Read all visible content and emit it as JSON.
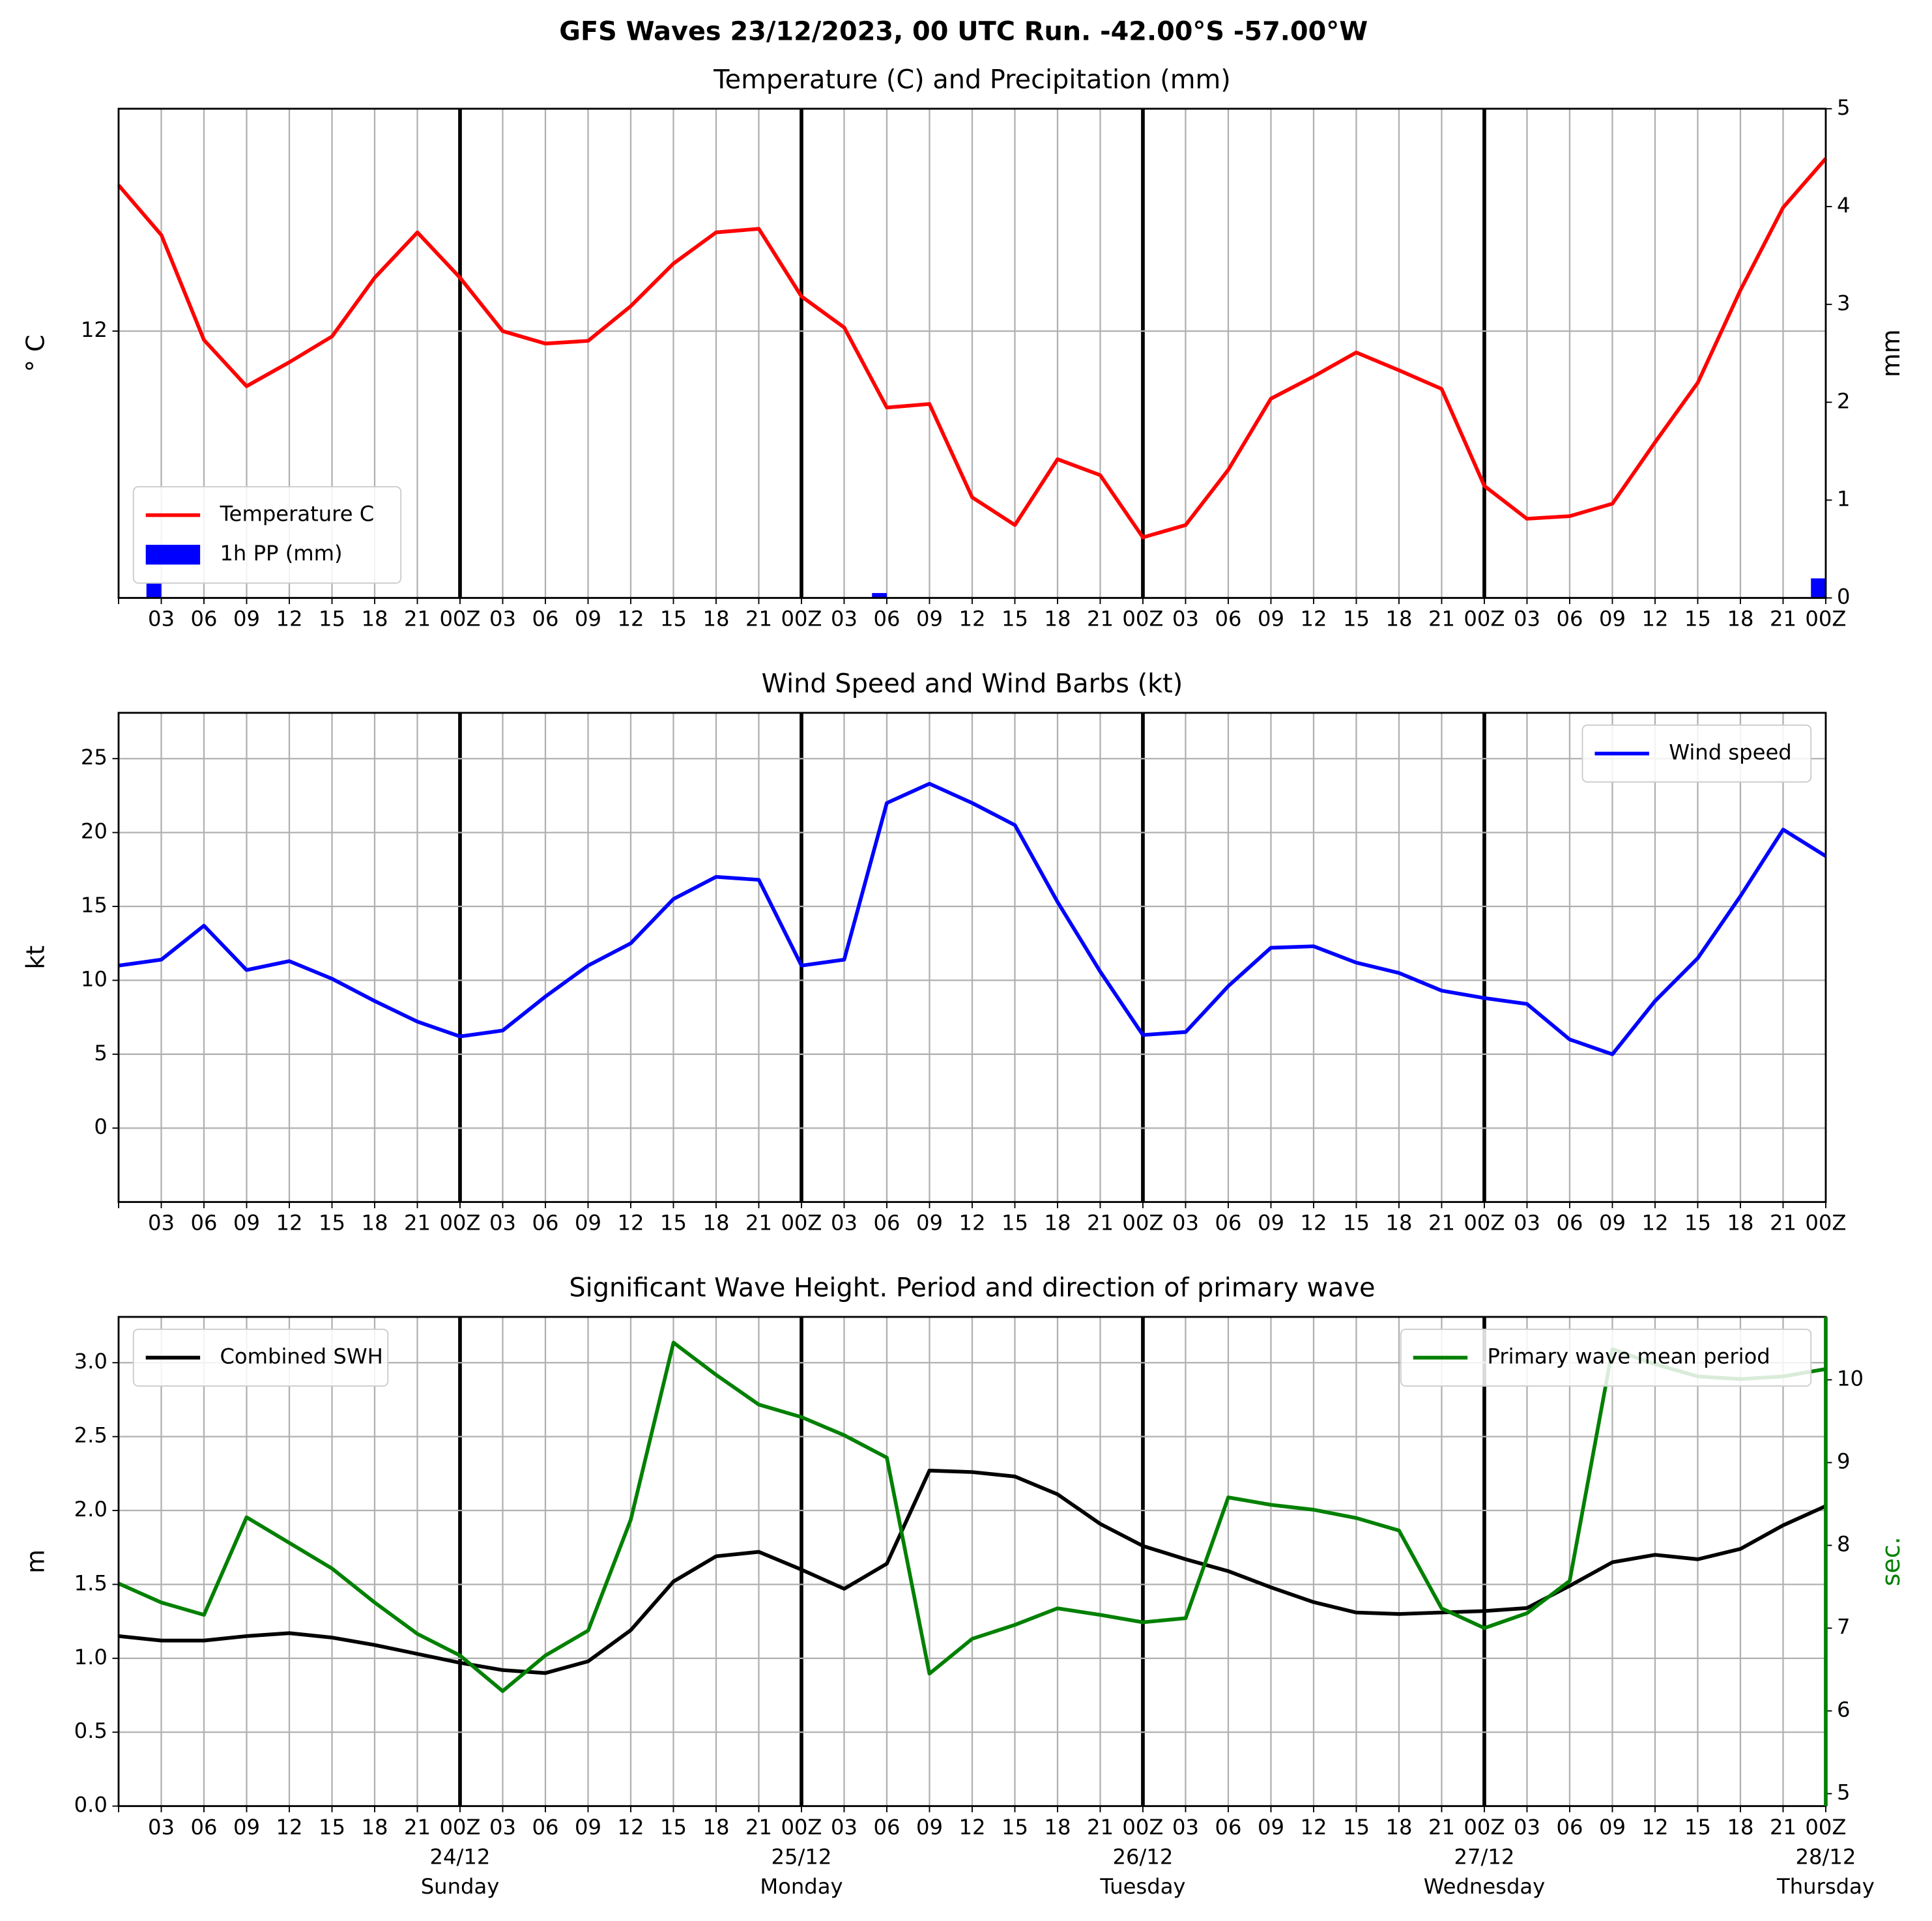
{
  "chart_data": [
    {
      "type": "line",
      "suptitle": "GFS Waves 23/12/2023, 00 UTC Run. -42.00°S -57.00°W",
      "title": "Temperature (C) and Precipitation (mm)",
      "ylabel": "° C",
      "y2label": "mm",
      "categories": [
        null,
        "03",
        "06",
        "09",
        "12",
        "15",
        "18",
        "21",
        "00Z",
        "03",
        "06",
        "09",
        "12",
        "15",
        "18",
        "21",
        "00Z",
        "03",
        "06",
        "09",
        "12",
        "15",
        "18",
        "21",
        "00Z",
        "03",
        "06",
        "09",
        "12",
        "15",
        "18",
        "21",
        "00Z",
        "03",
        "06",
        "09",
        "12",
        "15",
        "18",
        "21",
        "00Z"
      ],
      "ylim": [
        9,
        14.5
      ],
      "yticks": [
        12
      ],
      "y2lim": [
        0,
        5
      ],
      "y2ticks": [
        0,
        1,
        2,
        3,
        4,
        5
      ],
      "grid": true,
      "legend": "lower left",
      "series": [
        {
          "name": "Temperature C",
          "color": "#ff0000",
          "values": [
            13.64,
            13.08,
            11.9,
            11.38,
            11.65,
            11.94,
            12.6,
            13.11,
            12.6,
            12.0,
            11.86,
            11.89,
            12.28,
            12.76,
            13.11,
            13.15,
            12.39,
            12.04,
            11.14,
            11.18,
            10.13,
            9.82,
            10.56,
            10.38,
            9.68,
            9.82,
            10.44,
            11.24,
            11.49,
            11.76,
            11.56,
            11.35,
            10.26,
            9.89,
            9.92,
            10.06,
            10.75,
            11.42,
            12.46,
            13.39,
            13.94
          ]
        },
        {
          "name": "1h PP (mm)",
          "color": "#0000ff",
          "type": "bar",
          "axis": "y2",
          "values": [
            0,
            0.15,
            0,
            0,
            0,
            0,
            0,
            0,
            0,
            0,
            0,
            0,
            0,
            0,
            0,
            0,
            0,
            0,
            0.05,
            0,
            0,
            0,
            0,
            0,
            0,
            0,
            0,
            0,
            0,
            0,
            0,
            0,
            0,
            0,
            0,
            0,
            0,
            0,
            0,
            0,
            0.2
          ]
        }
      ]
    },
    {
      "type": "line",
      "title": "Wind Speed and Wind Barbs (kt)",
      "ylabel": "kt",
      "categories": [
        null,
        "03",
        "06",
        "09",
        "12",
        "15",
        "18",
        "21",
        "00Z",
        "03",
        "06",
        "09",
        "12",
        "15",
        "18",
        "21",
        "00Z",
        "03",
        "06",
        "09",
        "12",
        "15",
        "18",
        "21",
        "00Z",
        "03",
        "06",
        "09",
        "12",
        "15",
        "18",
        "21",
        "00Z",
        "03",
        "06",
        "09",
        "12",
        "15",
        "18",
        "21",
        "00Z"
      ],
      "ylim": [
        -5,
        28.1
      ],
      "yticks": [
        0,
        5,
        10,
        15,
        20,
        25
      ],
      "grid": true,
      "legend": "upper right",
      "series": [
        {
          "name": "Wind speed",
          "color": "#0000ff",
          "values": [
            11.0,
            11.4,
            13.7,
            10.7,
            11.3,
            10.1,
            8.6,
            7.2,
            6.2,
            6.6,
            8.9,
            11.0,
            12.5,
            15.5,
            17.0,
            16.8,
            11.0,
            11.4,
            22.0,
            23.3,
            22.0,
            20.5,
            15.3,
            10.6,
            6.3,
            6.5,
            9.6,
            12.2,
            12.3,
            11.2,
            10.5,
            9.3,
            8.8,
            8.4,
            6.0,
            5.0,
            8.6,
            11.5,
            15.7,
            20.2,
            18.4
          ]
        }
      ]
    },
    {
      "type": "line",
      "title": "Significant Wave Height. Period and direction of primary wave",
      "ylabel": "m",
      "y2label": "sec.",
      "y2color": "#008000",
      "categories": [
        null,
        "03",
        "06",
        "09",
        "12",
        "15",
        "18",
        "21",
        "00Z",
        "03",
        "06",
        "09",
        "12",
        "15",
        "18",
        "21",
        "00Z",
        "03",
        "06",
        "09",
        "12",
        "15",
        "18",
        "21",
        "00Z",
        "03",
        "06",
        "09",
        "12",
        "15",
        "18",
        "21",
        "00Z",
        "03",
        "06",
        "09",
        "12",
        "15",
        "18",
        "21",
        "00Z"
      ],
      "dates": [
        null,
        null,
        null,
        null,
        null,
        null,
        null,
        null,
        "24/12",
        null,
        null,
        null,
        null,
        null,
        null,
        null,
        "25/12",
        null,
        null,
        null,
        null,
        null,
        null,
        null,
        "26/12",
        null,
        null,
        null,
        null,
        null,
        null,
        null,
        "27/12",
        null,
        null,
        null,
        null,
        null,
        null,
        null,
        "28/12"
      ],
      "weekdays": [
        null,
        null,
        null,
        null,
        null,
        null,
        null,
        null,
        "Sunday",
        null,
        null,
        null,
        null,
        null,
        null,
        null,
        "Monday",
        null,
        null,
        null,
        null,
        null,
        null,
        null,
        "Tuesday",
        null,
        null,
        null,
        null,
        null,
        null,
        null,
        "Wednesday",
        null,
        null,
        null,
        null,
        null,
        null,
        null,
        "Thursday"
      ],
      "ylim": [
        0,
        3.31
      ],
      "yticks": [
        {
          "value": 0,
          "label": "0.0"
        },
        {
          "value": 0.5,
          "label": "0.5"
        },
        {
          "value": 1,
          "label": "1.0"
        },
        {
          "value": 1.5,
          "label": "1.5"
        },
        {
          "value": 2,
          "label": "2.0"
        },
        {
          "value": 2.5,
          "label": "2.5"
        },
        {
          "value": 3,
          "label": "3.0"
        }
      ],
      "y2lim": [
        4.85,
        10.76
      ],
      "y2ticks": [
        5,
        6,
        7,
        8,
        9,
        10
      ],
      "grid": true,
      "series": [
        {
          "name": "Combined SWH",
          "color": "#000000",
          "legend": "upper left",
          "values": [
            1.15,
            1.12,
            1.12,
            1.15,
            1.17,
            1.14,
            1.09,
            1.03,
            0.97,
            0.92,
            0.9,
            0.98,
            1.19,
            1.52,
            1.69,
            1.72,
            1.6,
            1.47,
            1.64,
            2.27,
            2.26,
            2.23,
            2.11,
            1.91,
            1.76,
            1.67,
            1.59,
            1.48,
            1.38,
            1.31,
            1.3,
            1.31,
            1.32,
            1.34,
            1.49,
            1.65,
            1.7,
            1.67,
            1.74,
            1.9,
            2.03
          ]
        },
        {
          "name": "Primary wave mean period",
          "color": "#008000",
          "axis": "y2",
          "legend": "upper right",
          "values": [
            7.54,
            7.31,
            7.16,
            8.34,
            8.03,
            7.72,
            7.31,
            6.93,
            6.67,
            6.24,
            6.67,
            6.97,
            8.31,
            10.45,
            10.06,
            9.7,
            9.55,
            9.33,
            9.06,
            6.45,
            6.87,
            7.04,
            7.24,
            7.16,
            7.07,
            7.12,
            8.58,
            8.49,
            8.43,
            8.33,
            8.18,
            7.24,
            7.0,
            7.18,
            7.57,
            10.37,
            10.19,
            10.04,
            10.01,
            10.04,
            10.13
          ]
        }
      ]
    }
  ]
}
